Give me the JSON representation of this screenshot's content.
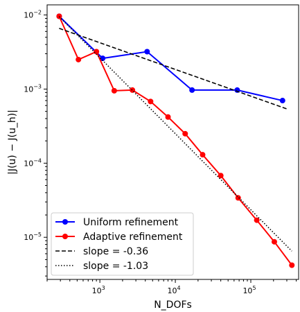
{
  "chart_data": {
    "type": "line",
    "title": "",
    "xlabel": "N_DOFs",
    "ylabel": "|J(u) − J(u_h)|",
    "xscale": "log",
    "yscale": "log",
    "xlim": [
      200,
      430000
    ],
    "ylim": [
      2.7e-06,
      0.0137
    ],
    "grid": false,
    "legend_position": "lower-left",
    "x_ticks": [
      {
        "value": 1000,
        "mantissa": "10",
        "exponent": "3"
      },
      {
        "value": 10000,
        "mantissa": "10",
        "exponent": "4"
      },
      {
        "value": 100000,
        "mantissa": "10",
        "exponent": "5"
      }
    ],
    "y_ticks": [
      {
        "value": 1e-05,
        "mantissa": "10",
        "exponent": "−5"
      },
      {
        "value": 0.0001,
        "mantissa": "10",
        "exponent": "−4"
      },
      {
        "value": 0.001,
        "mantissa": "10",
        "exponent": "−3"
      },
      {
        "value": 0.01,
        "mantissa": "10",
        "exponent": "−2"
      }
    ],
    "series": [
      {
        "name": "Uniform refinement",
        "color": "#0000ff",
        "style": "solid-marker",
        "x": [
          289,
          1089,
          4225,
          16641,
          66049,
          263169
        ],
        "y": [
          0.0096,
          0.0026,
          0.0032,
          0.00097,
          0.00097,
          0.0007
        ]
      },
      {
        "name": "Adaptive refinement",
        "color": "#ff0000",
        "style": "solid-marker",
        "x": [
          289,
          520,
          900,
          1550,
          2700,
          4700,
          8000,
          13500,
          23000,
          40000,
          68000,
          120000,
          205000,
          350000
        ],
        "y": [
          0.0096,
          0.0025,
          0.0032,
          0.00095,
          0.00097,
          0.00068,
          0.00042,
          0.00025,
          0.00013,
          6.8e-05,
          3.4e-05,
          1.7e-05,
          8.7e-06,
          4.2e-06
        ]
      },
      {
        "name": "slope = -0.36",
        "color": "#000000",
        "style": "dashed",
        "x": [
          289,
          300000
        ],
        "y": [
          0.0066,
          0.00054
        ]
      },
      {
        "name": "slope = -1.03",
        "color": "#000000",
        "style": "dotted",
        "x": [
          289,
          350000
        ],
        "y": [
          0.0095,
          6.5e-06
        ]
      }
    ]
  }
}
